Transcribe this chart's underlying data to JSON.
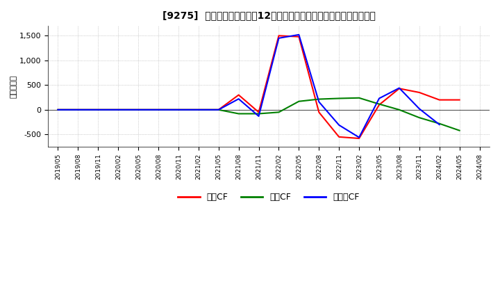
{
  "title": "[9275]  キャッシュフローの12か月移動合計の対前年同期増減額の推移",
  "ylabel": "（百万円）",
  "background_color": "#ffffff",
  "plot_bg_color": "#ffffff",
  "grid_color": "#aaaaaa",
  "zero_line_color": "#555555",
  "series": {
    "営業CF": {
      "color": "#ff0000",
      "data": {
        "2019/05": 0,
        "2019/08": 0,
        "2019/11": 0,
        "2020/02": 0,
        "2020/05": 0,
        "2020/08": 0,
        "2020/11": 0,
        "2021/02": 0,
        "2021/05": 0,
        "2021/08": 300,
        "2021/11": -50,
        "2022/02": 1500,
        "2022/05": 1480,
        "2022/08": -50,
        "2022/11": -550,
        "2023/02": -580,
        "2023/05": 100,
        "2023/08": 430,
        "2023/11": 350,
        "2024/02": 200,
        "2024/05": 200
      }
    },
    "投資CF": {
      "color": "#008000",
      "data": {
        "2019/05": 0,
        "2019/08": 0,
        "2019/11": 0,
        "2020/02": 0,
        "2020/05": 0,
        "2020/08": 0,
        "2020/11": 0,
        "2021/02": 0,
        "2021/05": 0,
        "2021/08": -80,
        "2021/11": -80,
        "2022/02": -50,
        "2022/05": 170,
        "2022/08": 215,
        "2022/11": 230,
        "2023/02": 240,
        "2023/05": 115,
        "2023/08": 0,
        "2023/11": -160,
        "2024/02": -280,
        "2024/05": -420
      }
    },
    "フリーCF": {
      "color": "#0000ff",
      "data": {
        "2019/05": 0,
        "2019/08": 0,
        "2019/11": 0,
        "2020/02": 0,
        "2020/05": 0,
        "2020/08": 0,
        "2020/11": 0,
        "2021/02": 0,
        "2021/05": 0,
        "2021/08": 220,
        "2021/11": -130,
        "2022/02": 1450,
        "2022/05": 1520,
        "2022/08": 160,
        "2022/11": -310,
        "2023/02": -560,
        "2023/05": 230,
        "2023/08": 440,
        "2023/11": 20,
        "2024/02": -300
      }
    }
  },
  "xlim_start": "2019/05",
  "xlim_end": "2024/08",
  "ylim": [
    -750,
    1700
  ],
  "yticks": [
    -500,
    0,
    500,
    1000,
    1500
  ],
  "xtick_labels": [
    "2019/05",
    "2019/08",
    "2019/11",
    "2020/02",
    "2020/05",
    "2020/08",
    "2020/11",
    "2021/02",
    "2021/05",
    "2021/08",
    "2021/11",
    "2022/02",
    "2022/05",
    "2022/08",
    "2022/11",
    "2023/02",
    "2023/05",
    "2023/08",
    "2023/11",
    "2024/02",
    "2024/05",
    "2024/08"
  ],
  "legend_labels": [
    "営業CF",
    "投資CF",
    "フリーCF"
  ],
  "legend_colors": [
    "#ff0000",
    "#008000",
    "#0000ff"
  ]
}
